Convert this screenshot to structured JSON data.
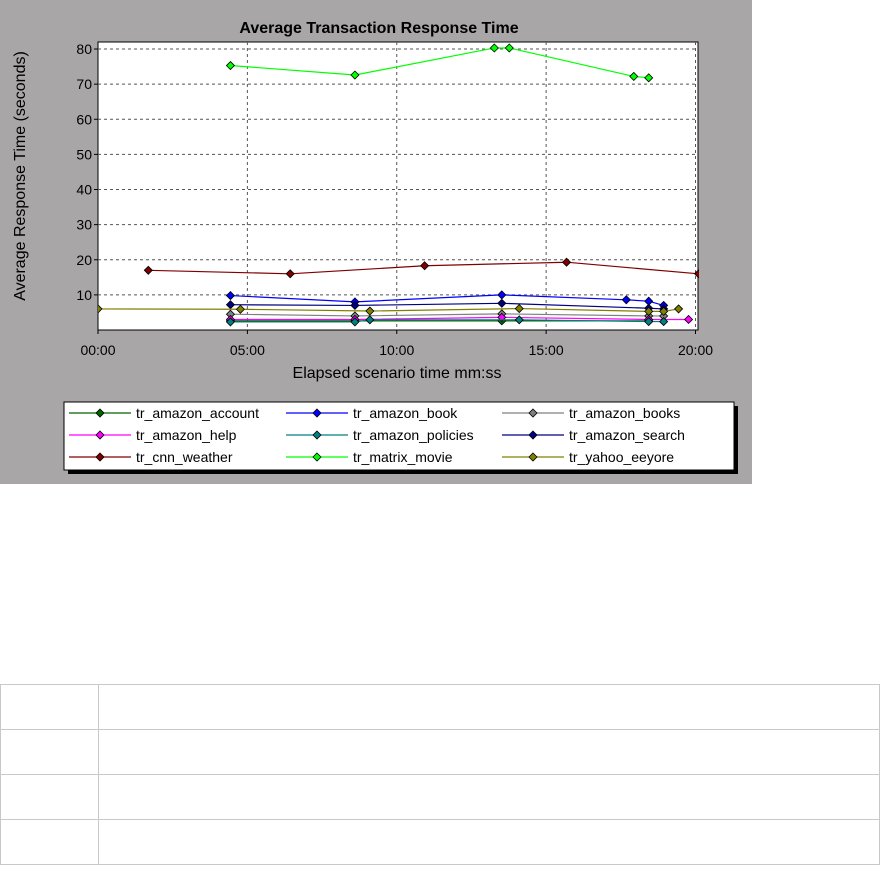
{
  "chart_data": {
    "type": "line",
    "title": "Average Transaction Response Time",
    "xlabel": "Elapsed scenario time mm:ss",
    "ylabel": "Average Response Time (seconds)",
    "xlim": [
      0,
      1205
    ],
    "ylim": [
      0,
      82
    ],
    "grid": true,
    "legend_position": "bottom",
    "x_ticks": [
      {
        "value": 0,
        "label": "00:00"
      },
      {
        "value": 300,
        "label": "05:00"
      },
      {
        "value": 600,
        "label": "10:00"
      },
      {
        "value": 900,
        "label": "15:00"
      },
      {
        "value": 1200,
        "label": "20:00"
      }
    ],
    "y_ticks": [
      {
        "value": 10,
        "label": "10"
      },
      {
        "value": 20,
        "label": "20"
      },
      {
        "value": 30,
        "label": "30"
      },
      {
        "value": 40,
        "label": "40"
      },
      {
        "value": 50,
        "label": "50"
      },
      {
        "value": 60,
        "label": "60"
      },
      {
        "value": 70,
        "label": "70"
      },
      {
        "value": 80,
        "label": "80"
      }
    ],
    "series": [
      {
        "name": "tr_amazon_account",
        "color": "#006400",
        "points": [
          [
            266,
            2.6
          ],
          [
            516,
            2.6
          ],
          [
            811,
            2.6
          ],
          [
            1106,
            2.6
          ]
        ]
      },
      {
        "name": "tr_amazon_book",
        "color": "#0000ff",
        "points": [
          [
            266,
            9.8
          ],
          [
            516,
            8.0
          ],
          [
            811,
            10.0
          ],
          [
            1061,
            8.6
          ],
          [
            1106,
            8.2
          ],
          [
            1136,
            7.0
          ]
        ]
      },
      {
        "name": "tr_amazon_books",
        "color": "#808080",
        "points": [
          [
            266,
            4.5
          ],
          [
            516,
            4.0
          ],
          [
            811,
            4.6
          ],
          [
            1106,
            4.0
          ],
          [
            1136,
            4.0
          ]
        ]
      },
      {
        "name": "tr_amazon_help",
        "color": "#ff00ff",
        "points": [
          [
            266,
            3.0
          ],
          [
            516,
            3.0
          ],
          [
            811,
            3.6
          ],
          [
            1106,
            3.0
          ],
          [
            1186,
            3.0
          ]
        ]
      },
      {
        "name": "tr_amazon_policies",
        "color": "#008080",
        "points": [
          [
            266,
            2.3
          ],
          [
            516,
            2.3
          ],
          [
            546,
            2.9
          ],
          [
            846,
            2.9
          ],
          [
            1106,
            2.4
          ],
          [
            1136,
            2.4
          ]
        ]
      },
      {
        "name": "tr_amazon_search",
        "color": "#000080",
        "points": [
          [
            266,
            7.2
          ],
          [
            516,
            7.0
          ],
          [
            811,
            7.6
          ],
          [
            1106,
            6.2
          ],
          [
            1136,
            6.0
          ]
        ]
      },
      {
        "name": "tr_cnn_weather",
        "color": "#800000",
        "points": [
          [
            101,
            17.0
          ],
          [
            386,
            16.0
          ],
          [
            656,
            18.3
          ],
          [
            941,
            19.3
          ],
          [
            1206,
            16.0
          ]
        ]
      },
      {
        "name": "tr_matrix_movie",
        "color": "#00ff00",
        "points": [
          [
            266,
            75.3
          ],
          [
            516,
            72.6
          ],
          [
            796,
            80.3
          ],
          [
            826,
            80.3
          ],
          [
            1076,
            72.2
          ],
          [
            1106,
            71.8
          ]
        ]
      },
      {
        "name": "tr_yahoo_eeyore",
        "color": "#808000",
        "points": [
          [
            0,
            6.0
          ],
          [
            286,
            5.9
          ],
          [
            546,
            5.4
          ],
          [
            846,
            6.1
          ],
          [
            1106,
            5.3
          ],
          [
            1136,
            5.3
          ],
          [
            1166,
            6.0
          ]
        ]
      }
    ]
  }
}
